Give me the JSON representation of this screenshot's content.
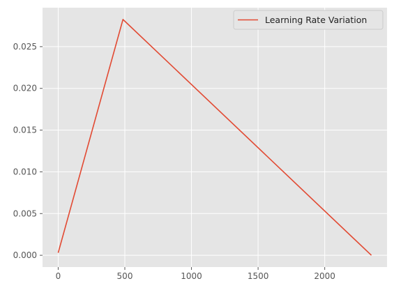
{
  "chart_data": {
    "type": "line",
    "title": "",
    "xlabel": "",
    "ylabel": "",
    "xlim": [
      -117.5,
      2467.5
    ],
    "ylim": [
      -0.001412,
      0.02967
    ],
    "xticks": [
      0,
      500,
      1000,
      1500,
      2000
    ],
    "yticks": [
      0.0,
      0.005,
      0.01,
      0.015,
      0.02,
      0.025
    ],
    "xtick_labels": [
      "0",
      "500",
      "1000",
      "1500",
      "2000"
    ],
    "ytick_labels": [
      "0.000",
      "0.005",
      "0.010",
      "0.015",
      "0.020",
      "0.025"
    ],
    "grid": true,
    "legend_position": "top-right",
    "series": [
      {
        "name": "Learning Rate Variation",
        "color": "#E24A33",
        "x": [
          0,
          486,
          2350
        ],
        "y": [
          0.0003,
          0.02826,
          0.0
        ]
      }
    ]
  }
}
